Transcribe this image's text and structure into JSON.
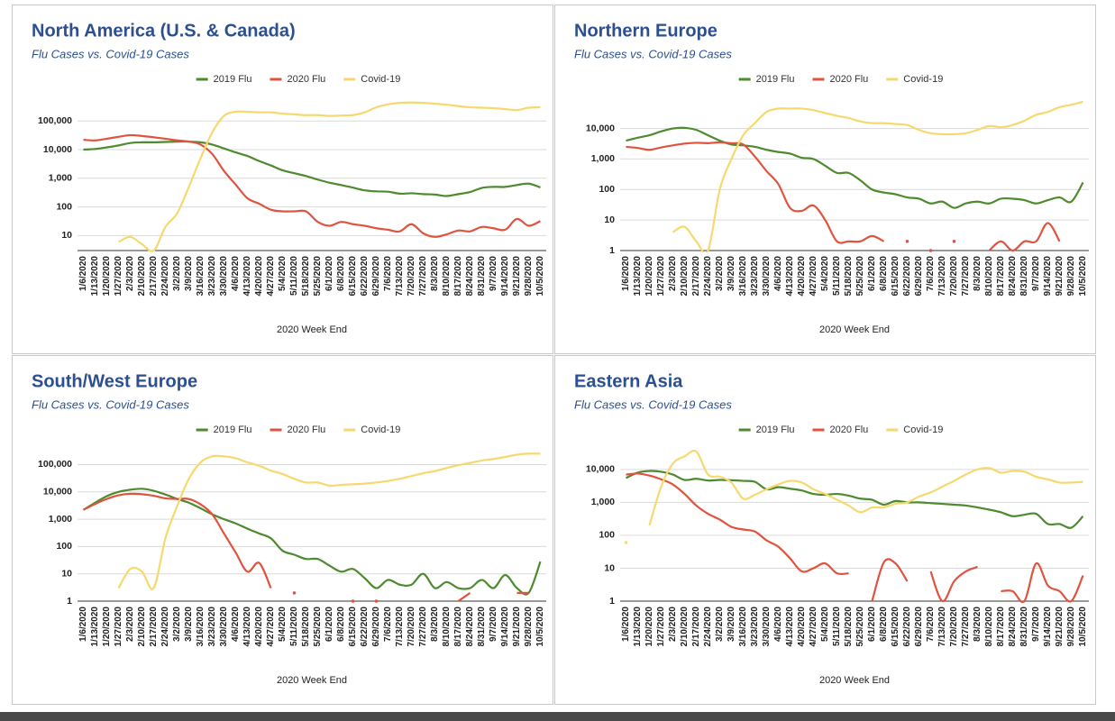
{
  "chart_data": [
    {
      "type": "line",
      "title": "North America (U.S. & Canada)",
      "subtitle": "Flu Cases vs. Covid-19 Cases",
      "xlabel": "2020 Week End",
      "log_scale": true,
      "grid": true,
      "legend": "top",
      "categories": [
        "1/6/2020",
        "1/13/2020",
        "1/20/2020",
        "1/27/2020",
        "2/3/2020",
        "2/10/2020",
        "2/17/2020",
        "2/24/2020",
        "3/2/2020",
        "3/9/2020",
        "3/16/2020",
        "3/23/2020",
        "3/30/2020",
        "4/6/2020",
        "4/13/2020",
        "4/20/2020",
        "4/27/2020",
        "5/4/2020",
        "5/11/2020",
        "5/18/2020",
        "5/25/2020",
        "6/1/2020",
        "6/8/2020",
        "6/15/2020",
        "6/22/2020",
        "6/29/2020",
        "7/6/2020",
        "7/13/2020",
        "7/20/2020",
        "7/27/2020",
        "8/3/2020",
        "8/10/2020",
        "8/17/2020",
        "8/24/2020",
        "8/31/2020",
        "9/7/2020",
        "9/14/2020",
        "9/21/2020",
        "9/28/2020",
        "10/5/2020"
      ],
      "ylim": [
        3,
        500000
      ],
      "yticks": [
        10,
        100,
        {
          "value": 1000,
          "label": "1,000"
        },
        {
          "value": 10000,
          "label": "10,000"
        },
        {
          "value": 100000,
          "label": "100,000"
        }
      ],
      "series": [
        {
          "name": "2019 Flu",
          "color": "#4e8a2e",
          "values": [
            10000,
            10500,
            12000,
            14000,
            17000,
            18000,
            18000,
            18500,
            19000,
            19000,
            18000,
            15000,
            11000,
            8000,
            6000,
            4000,
            2800,
            1900,
            1500,
            1200,
            900,
            700,
            580,
            470,
            380,
            350,
            340,
            290,
            300,
            280,
            270,
            240,
            280,
            330,
            460,
            500,
            500,
            580,
            650,
            480
          ]
        },
        {
          "name": "2020 Flu",
          "color": "#e0533f",
          "values": [
            22000,
            21000,
            24000,
            28000,
            32000,
            30000,
            27000,
            24000,
            21000,
            19000,
            15000,
            7000,
            1800,
            600,
            200,
            130,
            80,
            70,
            70,
            70,
            30,
            22,
            30,
            25,
            22,
            18,
            16,
            14,
            25,
            12,
            9,
            11,
            15,
            14,
            20,
            18,
            16,
            38,
            22,
            32
          ]
        },
        {
          "name": "Covid-19",
          "color": "#f6d96e",
          "values": [
            null,
            null,
            null,
            6,
            9,
            5,
            3,
            20,
            60,
            500,
            5000,
            40000,
            150000,
            210000,
            210000,
            200000,
            200000,
            180000,
            170000,
            160000,
            160000,
            150000,
            155000,
            160000,
            200000,
            300000,
            380000,
            430000,
            440000,
            430000,
            400000,
            370000,
            330000,
            300000,
            290000,
            280000,
            260000,
            240000,
            290000,
            300000
          ]
        }
      ]
    },
    {
      "type": "line",
      "title": "Northern Europe",
      "subtitle": "Flu Cases vs. Covid-19 Cases",
      "xlabel": "2020 Week End",
      "log_scale": true,
      "grid": true,
      "legend": "top",
      "categories": [
        "1/6/2020",
        "1/13/2020",
        "1/20/2020",
        "1/27/2020",
        "2/3/2020",
        "2/10/2020",
        "2/17/2020",
        "2/24/2020",
        "3/2/2020",
        "3/9/2020",
        "3/16/2020",
        "3/23/2020",
        "3/30/2020",
        "4/6/2020",
        "4/13/2020",
        "4/20/2020",
        "4/27/2020",
        "5/4/2020",
        "5/11/2020",
        "5/18/2020",
        "5/25/2020",
        "6/1/2020",
        "6/8/2020",
        "6/15/2020",
        "6/22/2020",
        "6/29/2020",
        "7/6/2020",
        "7/13/2020",
        "7/20/2020",
        "7/27/2020",
        "8/3/2020",
        "8/10/2020",
        "8/17/2020",
        "8/24/2020",
        "8/31/2020",
        "9/7/2020",
        "9/14/2020",
        "9/21/2020",
        "9/28/2020",
        "10/5/2020"
      ],
      "ylim": [
        1,
        80000
      ],
      "yticks": [
        1,
        10,
        100,
        {
          "value": 1000,
          "label": "1,000"
        },
        {
          "value": 10000,
          "label": "10,000"
        }
      ],
      "series": [
        {
          "name": "2019 Flu",
          "color": "#4e8a2e",
          "values": [
            4000,
            5000,
            6000,
            8000,
            10000,
            10500,
            9000,
            6000,
            4000,
            3000,
            2800,
            2500,
            2000,
            1700,
            1500,
            1100,
            1000,
            600,
            350,
            350,
            200,
            100,
            80,
            70,
            55,
            50,
            35,
            40,
            25,
            35,
            40,
            35,
            50,
            50,
            45,
            35,
            45,
            55,
            40,
            170
          ]
        },
        {
          "name": "2020 Flu",
          "color": "#e0533f",
          "values": [
            2500,
            2300,
            2000,
            2400,
            2800,
            3200,
            3400,
            3300,
            3500,
            3300,
            3000,
            1200,
            400,
            150,
            25,
            20,
            30,
            10,
            2,
            2,
            2,
            3,
            2,
            null,
            2,
            null,
            1,
            null,
            2,
            null,
            null,
            1,
            2,
            1,
            2,
            2,
            8,
            2,
            null,
            null
          ]
        },
        {
          "name": "Covid-19",
          "color": "#f6d96e",
          "values": [
            null,
            null,
            null,
            null,
            4,
            6,
            2,
            1,
            100,
            1000,
            6000,
            15000,
            35000,
            45000,
            45000,
            45000,
            40000,
            32000,
            26000,
            22000,
            17000,
            15000,
            15000,
            14000,
            13000,
            9000,
            7000,
            6500,
            6500,
            7000,
            9000,
            12000,
            11000,
            13000,
            18000,
            28000,
            35000,
            50000,
            60000,
            75000
          ]
        }
      ]
    },
    {
      "type": "line",
      "title": "South/West Europe",
      "subtitle": "Flu Cases vs. Covid-19 Cases",
      "xlabel": "2020 Week End",
      "log_scale": true,
      "grid": true,
      "legend": "top",
      "categories": [
        "1/6/2020",
        "1/13/2020",
        "1/20/2020",
        "1/27/2020",
        "2/3/2020",
        "2/10/2020",
        "2/17/2020",
        "2/24/2020",
        "3/2/2020",
        "3/9/2020",
        "3/16/2020",
        "3/23/2020",
        "3/30/2020",
        "4/6/2020",
        "4/13/2020",
        "4/20/2020",
        "4/27/2020",
        "5/4/2020",
        "5/11/2020",
        "5/18/2020",
        "5/25/2020",
        "6/1/2020",
        "6/8/2020",
        "6/15/2020",
        "6/22/2020",
        "6/29/2020",
        "7/6/2020",
        "7/13/2020",
        "7/20/2020",
        "7/27/2020",
        "8/3/2020",
        "8/10/2020",
        "8/17/2020",
        "8/24/2020",
        "8/31/2020",
        "9/7/2020",
        "9/14/2020",
        "9/21/2020",
        "9/28/2020",
        "10/5/2020"
      ],
      "ylim": [
        1,
        300000
      ],
      "yticks": [
        1,
        10,
        100,
        {
          "value": 1000,
          "label": "1,000"
        },
        {
          "value": 10000,
          "label": "10,000"
        },
        {
          "value": 100000,
          "label": "100,000"
        }
      ],
      "series": [
        {
          "name": "2019 Flu",
          "color": "#4e8a2e",
          "values": [
            2200,
            4000,
            7000,
            10000,
            12000,
            13000,
            11000,
            8000,
            5500,
            4000,
            2500,
            1500,
            1000,
            700,
            450,
            300,
            200,
            70,
            50,
            35,
            35,
            20,
            12,
            15,
            7,
            3,
            6,
            4,
            4,
            10,
            3,
            5,
            3,
            3,
            6,
            3,
            9,
            3,
            2,
            28
          ]
        },
        {
          "name": "2020 Flu",
          "color": "#e0533f",
          "values": [
            2200,
            3600,
            5500,
            7500,
            8500,
            8200,
            7200,
            5800,
            5500,
            5500,
            3500,
            1500,
            300,
            60,
            12,
            25,
            3,
            null,
            2,
            null,
            null,
            null,
            null,
            1,
            null,
            1,
            null,
            null,
            null,
            null,
            null,
            null,
            1,
            2,
            null,
            null,
            null,
            2,
            2,
            null
          ]
        },
        {
          "name": "Covid-19",
          "color": "#f6d96e",
          "values": [
            null,
            null,
            null,
            3,
            15,
            12,
            3,
            200,
            3000,
            30000,
            120000,
            200000,
            200000,
            170000,
            120000,
            90000,
            60000,
            45000,
            30000,
            22000,
            22000,
            17000,
            18000,
            19000,
            20000,
            22000,
            25000,
            30000,
            38000,
            48000,
            58000,
            75000,
            95000,
            115000,
            140000,
            160000,
            190000,
            230000,
            250000,
            250000
          ]
        }
      ]
    },
    {
      "type": "line",
      "title": "Eastern Asia",
      "subtitle": "Flu Cases vs. Covid-19 Cases",
      "xlabel": "2020 Week End",
      "log_scale": true,
      "grid": true,
      "legend": "top",
      "categories": [
        "1/6/2020",
        "1/13/2020",
        "1/20/2020",
        "1/27/2020",
        "2/3/2020",
        "2/10/2020",
        "2/17/2020",
        "2/24/2020",
        "3/2/2020",
        "3/9/2020",
        "3/16/2020",
        "3/23/2020",
        "3/30/2020",
        "4/6/2020",
        "4/13/2020",
        "4/20/2020",
        "4/27/2020",
        "5/4/2020",
        "5/11/2020",
        "5/18/2020",
        "5/25/2020",
        "6/1/2020",
        "6/8/2020",
        "6/15/2020",
        "6/22/2020",
        "6/29/2020",
        "7/6/2020",
        "7/13/2020",
        "7/20/2020",
        "7/27/2020",
        "8/3/2020",
        "8/10/2020",
        "8/17/2020",
        "8/24/2020",
        "8/31/2020",
        "9/7/2020",
        "9/14/2020",
        "9/21/2020",
        "9/28/2020",
        "10/5/2020"
      ],
      "ylim": [
        1,
        35000
      ],
      "yticks": [
        1,
        10,
        100,
        {
          "value": 1000,
          "label": "1,000"
        },
        {
          "value": 10000,
          "label": "10,000"
        }
      ],
      "series": [
        {
          "name": "2019 Flu",
          "color": "#4e8a2e",
          "values": [
            5500,
            8000,
            9000,
            8500,
            7000,
            4800,
            5200,
            4600,
            4800,
            4700,
            4500,
            4200,
            2500,
            2900,
            2600,
            2300,
            1800,
            1700,
            1800,
            1600,
            1300,
            1200,
            850,
            1100,
            1000,
            1000,
            950,
            900,
            850,
            800,
            700,
            600,
            500,
            380,
            420,
            450,
            220,
            220,
            170,
            380
          ]
        },
        {
          "name": "2020 Flu",
          "color": "#e0533f",
          "values": [
            7000,
            7500,
            6500,
            5000,
            3500,
            1800,
            800,
            450,
            300,
            180,
            150,
            130,
            70,
            45,
            20,
            8,
            10,
            14,
            7,
            7,
            null,
            1,
            15,
            14,
            4,
            null,
            8,
            1,
            4,
            8,
            11,
            null,
            2,
            2,
            1,
            14,
            3,
            2,
            1,
            6
          ]
        },
        {
          "name": "Covid-19",
          "color": "#f6d96e",
          "values": [
            60,
            null,
            200,
            3000,
            15000,
            25000,
            35000,
            7000,
            6000,
            4000,
            1300,
            1700,
            2500,
            3500,
            4500,
            4000,
            2500,
            1800,
            1200,
            800,
            500,
            700,
            700,
            900,
            1000,
            1500,
            2000,
            3000,
            4500,
            7000,
            10000,
            11000,
            8000,
            9000,
            8500,
            6000,
            5000,
            4000,
            4000,
            4200
          ]
        }
      ]
    }
  ]
}
